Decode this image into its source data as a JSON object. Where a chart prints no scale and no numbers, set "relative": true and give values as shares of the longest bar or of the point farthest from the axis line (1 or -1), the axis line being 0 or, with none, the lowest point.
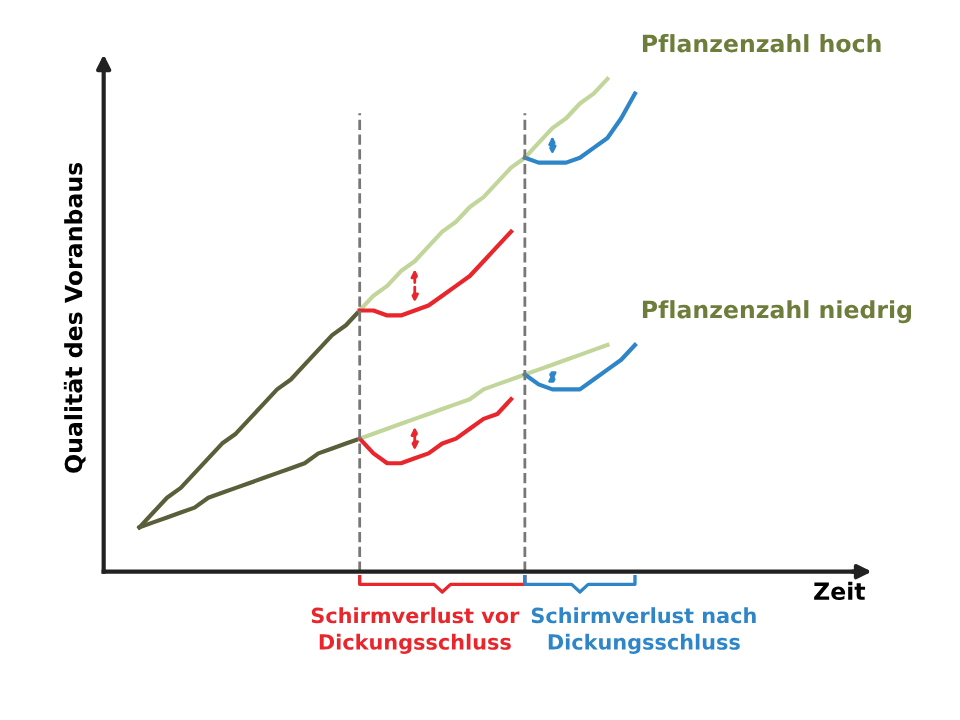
{
  "chart_data": {
    "type": "line",
    "relative": true,
    "ylabel": "Qualität des Voranbaus",
    "categories": [
      null,
      null,
      null,
      null,
      null,
      null,
      null,
      null,
      null,
      null,
      null,
      null,
      null,
      null,
      null,
      null,
      null,
      null,
      null,
      null,
      null,
      null,
      null,
      null,
      null,
      null,
      null,
      null,
      null,
      null,
      null,
      null,
      null,
      null,
      null,
      null,
      null
    ],
    "series": [
      {
        "color": "#5a5f3a",
        "values": [
          0.09,
          0.12,
          0.15,
          0.17,
          0.2,
          0.23,
          0.26,
          0.28,
          0.31,
          0.34,
          0.37,
          0.39,
          0.42,
          0.45,
          0.48,
          0.5,
          0.53,
          null,
          null,
          null,
          null,
          null,
          null,
          null,
          null,
          null,
          null,
          null,
          null,
          null,
          null,
          null,
          null,
          null,
          null,
          null,
          null
        ]
      },
      {
        "color": "#5a5f3a",
        "values": [
          0.09,
          0.1,
          0.11,
          0.12,
          0.13,
          0.15,
          0.16,
          0.17,
          0.18,
          0.19,
          0.2,
          0.21,
          0.22,
          0.24,
          0.25,
          0.26,
          0.27,
          null,
          null,
          null,
          null,
          null,
          null,
          null,
          null,
          null,
          null,
          null,
          null,
          null,
          null,
          null,
          null,
          null,
          null,
          null,
          null
        ]
      },
      {
        "name": "Pflanzenzahl hoch",
        "color": "#c2d69b",
        "values": [
          null,
          null,
          null,
          null,
          null,
          null,
          null,
          null,
          null,
          null,
          null,
          null,
          null,
          null,
          null,
          null,
          0.53,
          0.56,
          0.58,
          0.61,
          0.63,
          0.66,
          0.69,
          0.71,
          0.74,
          0.76,
          0.79,
          0.82,
          0.84,
          0.87,
          0.9,
          0.92,
          0.95,
          0.97,
          1.0,
          null,
          null
        ]
      },
      {
        "name": "Pflanzenzahl niedrig",
        "color": "#c2d69b",
        "values": [
          null,
          null,
          null,
          null,
          null,
          null,
          null,
          null,
          null,
          null,
          null,
          null,
          null,
          null,
          null,
          null,
          0.27,
          0.28,
          0.29,
          0.3,
          0.31,
          0.32,
          0.33,
          0.34,
          0.35,
          0.37,
          0.38,
          0.39,
          0.4,
          0.41,
          0.42,
          0.43,
          0.44,
          0.45,
          0.46,
          null,
          null
        ]
      },
      {
        "color": "#e8262b",
        "values": [
          null,
          null,
          null,
          null,
          null,
          null,
          null,
          null,
          null,
          null,
          null,
          null,
          null,
          null,
          null,
          null,
          0.53,
          0.53,
          0.52,
          0.52,
          0.53,
          0.54,
          0.56,
          0.58,
          0.6,
          0.63,
          0.66,
          0.69,
          null,
          null,
          null,
          null,
          null,
          null,
          null,
          null,
          null
        ]
      },
      {
        "color": "#e8262b",
        "values": [
          null,
          null,
          null,
          null,
          null,
          null,
          null,
          null,
          null,
          null,
          null,
          null,
          null,
          null,
          null,
          null,
          0.27,
          0.24,
          0.22,
          0.22,
          0.23,
          0.24,
          0.26,
          0.27,
          0.29,
          0.31,
          0.32,
          0.35,
          null,
          null,
          null,
          null,
          null,
          null,
          null,
          null,
          null
        ]
      },
      {
        "color": "#2e86c8",
        "values": [
          null,
          null,
          null,
          null,
          null,
          null,
          null,
          null,
          null,
          null,
          null,
          null,
          null,
          null,
          null,
          null,
          null,
          null,
          null,
          null,
          null,
          null,
          null,
          null,
          null,
          null,
          null,
          null,
          0.84,
          0.83,
          0.83,
          0.83,
          0.84,
          0.86,
          0.88,
          0.92,
          0.97
        ]
      },
      {
        "color": "#2e86c8",
        "values": [
          null,
          null,
          null,
          null,
          null,
          null,
          null,
          null,
          null,
          null,
          null,
          null,
          null,
          null,
          null,
          null,
          null,
          null,
          null,
          null,
          null,
          null,
          null,
          null,
          null,
          null,
          null,
          null,
          0.4,
          0.38,
          0.37,
          0.37,
          0.37,
          0.39,
          0.41,
          0.43,
          0.46
        ]
      }
    ],
    "annotations": [
      "Schirmverlust vor\nDickungsschluss",
      "Schirmverlust nach\nDickungsschluss",
      "Zeit"
    ],
    "legend": false,
    "grid": false
  }
}
